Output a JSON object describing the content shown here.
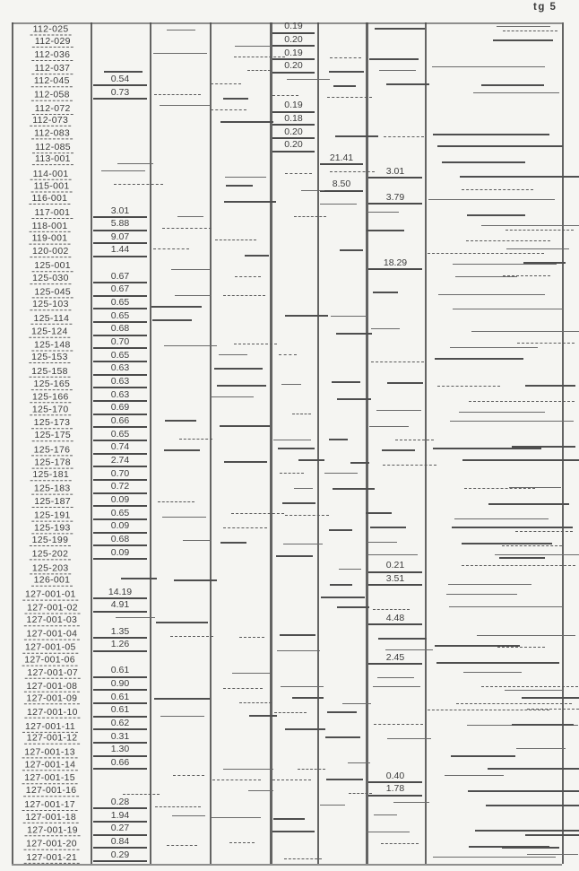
{
  "page_label": "tg 5",
  "colors": {
    "ink": "#3c3c3c",
    "line": "#4a4a4a",
    "paper": "#f5f5f2"
  },
  "table": {
    "note": "scanned table, 8 columns, most cells redacted; each row has one legible value",
    "rows": [
      {
        "id": "112-025",
        "col": 5,
        "value": "0.19"
      },
      {
        "id": "112-029",
        "col": 5,
        "value": "0.20"
      },
      {
        "id": "112-036",
        "col": 5,
        "value": "0.19"
      },
      {
        "id": "112-037",
        "col": 5,
        "value": "0.20"
      },
      {
        "id": "112-045",
        "col": 2,
        "value": "0.54"
      },
      {
        "id": "112-058",
        "col": 2,
        "value": "0.73"
      },
      {
        "id": "112-072",
        "col": 5,
        "value": "0.19"
      },
      {
        "id": "112-073",
        "col": 5,
        "value": "0.18"
      },
      {
        "id": "112-083",
        "col": 5,
        "value": "0.20"
      },
      {
        "id": "112-085",
        "col": 5,
        "value": "0.20"
      },
      {
        "id": "113-001",
        "col": 6,
        "value": "21.41"
      },
      {
        "id": "114-001",
        "col": 7,
        "value": "3.01"
      },
      {
        "id": "115-001",
        "col": 6,
        "value": "8.50"
      },
      {
        "id": "116-001",
        "col": 7,
        "value": "3.79"
      },
      {
        "id": "117-001",
        "col": 2,
        "value": "3.01"
      },
      {
        "id": "118-001",
        "col": 2,
        "value": "5.88"
      },
      {
        "id": "119-001",
        "col": 2,
        "value": "9.07"
      },
      {
        "id": "120-002",
        "col": 2,
        "value": "1.44"
      },
      {
        "id": "125-001",
        "col": 7,
        "value": "18.29"
      },
      {
        "id": "125-030",
        "col": 2,
        "value": "0.67"
      },
      {
        "id": "125-045",
        "col": 2,
        "value": "0.67"
      },
      {
        "id": "125-103",
        "col": 2,
        "value": "0.65"
      },
      {
        "id": "125-114",
        "col": 2,
        "value": "0.65"
      },
      {
        "id": "125-124",
        "col": 2,
        "value": "0.68"
      },
      {
        "id": "125-148",
        "col": 2,
        "value": "0.70"
      },
      {
        "id": "125-153",
        "col": 2,
        "value": "0.65"
      },
      {
        "id": "125-158",
        "col": 2,
        "value": "0.63"
      },
      {
        "id": "125-165",
        "col": 2,
        "value": "0.63"
      },
      {
        "id": "125-166",
        "col": 2,
        "value": "0.63"
      },
      {
        "id": "125-170",
        "col": 2,
        "value": "0.69"
      },
      {
        "id": "125-173",
        "col": 2,
        "value": "0.66"
      },
      {
        "id": "125-175",
        "col": 2,
        "value": "0.65"
      },
      {
        "id": "125-176",
        "col": 2,
        "value": "0.74"
      },
      {
        "id": "125-178",
        "col": 2,
        "value": "2.74"
      },
      {
        "id": "125-181",
        "col": 2,
        "value": "0.70"
      },
      {
        "id": "125-183",
        "col": 2,
        "value": "0.72"
      },
      {
        "id": "125-187",
        "col": 2,
        "value": "0.09"
      },
      {
        "id": "125-191",
        "col": 2,
        "value": "0.65"
      },
      {
        "id": "125-193",
        "col": 2,
        "value": "0.09"
      },
      {
        "id": "125-199",
        "col": 2,
        "value": "0.68"
      },
      {
        "id": "125-202",
        "col": 2,
        "value": "0.09"
      },
      {
        "id": "125-203",
        "col": 7,
        "value": "0.21"
      },
      {
        "id": "126-001",
        "col": 7,
        "value": "3.51"
      },
      {
        "id": "127-001-01",
        "col": 2,
        "value": "14.19"
      },
      {
        "id": "127-001-02",
        "col": 2,
        "value": "4.91"
      },
      {
        "id": "127-001-03",
        "col": 7,
        "value": "4.48"
      },
      {
        "id": "127-001-04",
        "col": 2,
        "value": "1.35"
      },
      {
        "id": "127-001-05",
        "col": 2,
        "value": "1.26"
      },
      {
        "id": "127-001-06",
        "col": 7,
        "value": "2.45"
      },
      {
        "id": "127-001-07",
        "col": 2,
        "value": "0.61"
      },
      {
        "id": "127-001-08",
        "col": 2,
        "value": "0.90"
      },
      {
        "id": "127-001-09",
        "col": 2,
        "value": "0.61"
      },
      {
        "id": "127-001-10",
        "col": 2,
        "value": "0.61"
      },
      {
        "id": "127-001-11",
        "col": 2,
        "value": "0.62"
      },
      {
        "id": "127-001-12",
        "col": 2,
        "value": "0.31"
      },
      {
        "id": "127-001-13",
        "col": 2,
        "value": "1.30"
      },
      {
        "id": "127-001-14",
        "col": 2,
        "value": "0.66"
      },
      {
        "id": "127-001-15",
        "col": 7,
        "value": "0.40"
      },
      {
        "id": "127-001-16",
        "col": 7,
        "value": "1.78"
      },
      {
        "id": "127-001-17",
        "col": 2,
        "value": "0.28"
      },
      {
        "id": "127-001-18",
        "col": 2,
        "value": "1.94"
      },
      {
        "id": "127-001-19",
        "col": 2,
        "value": "0.27"
      },
      {
        "id": "127-001-20",
        "col": 2,
        "value": "0.84"
      },
      {
        "id": "127-001-21",
        "col": 2,
        "value": "0.29"
      }
    ]
  }
}
